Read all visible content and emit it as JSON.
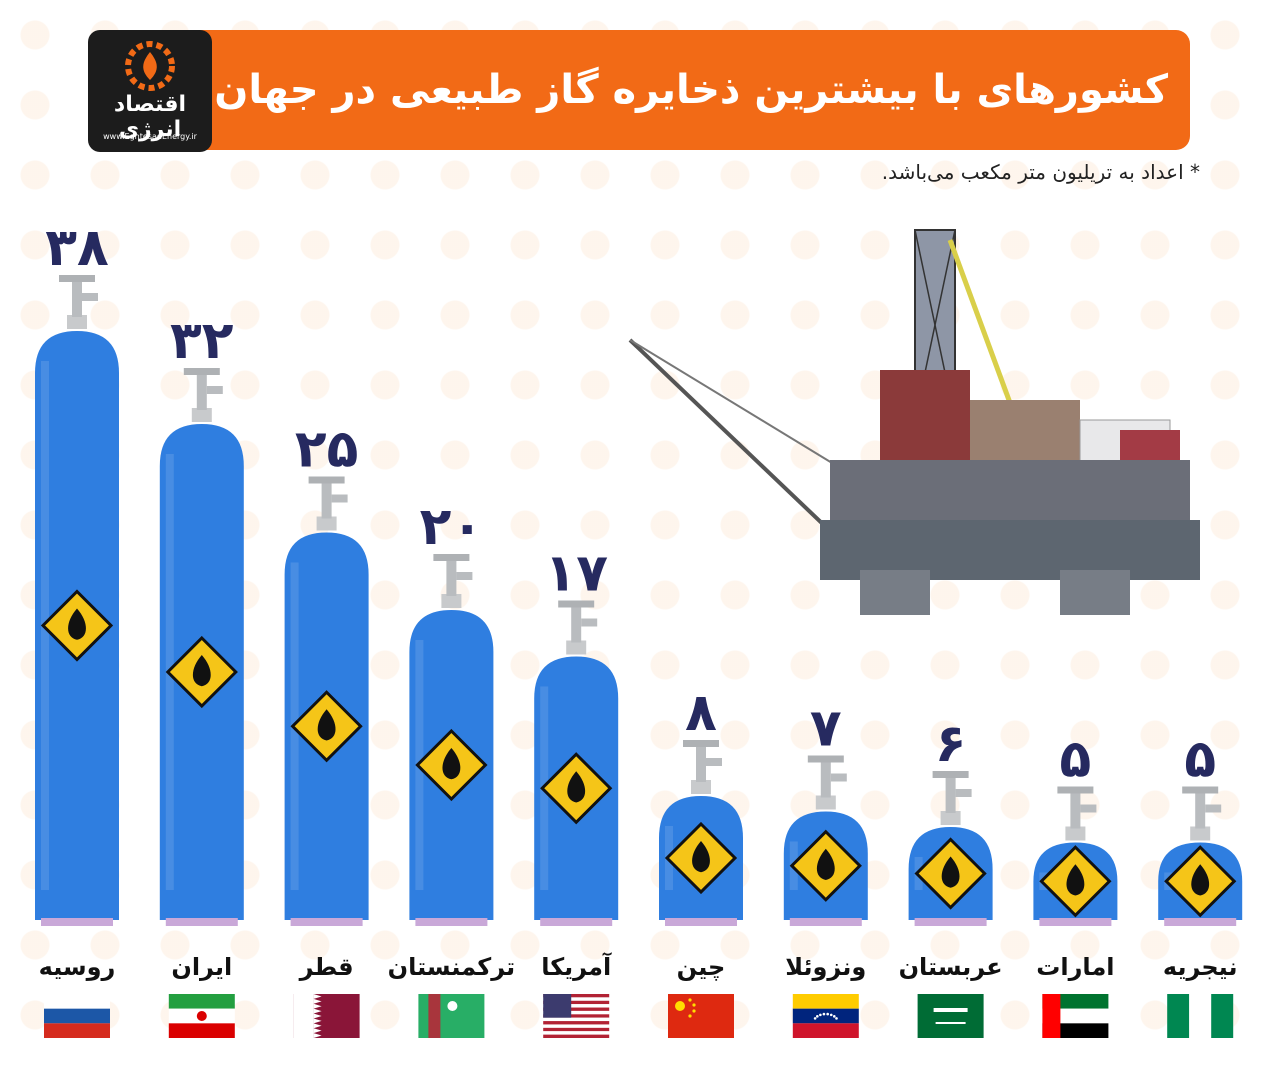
{
  "header": {
    "title": "کشورهای با بیشترین ذخایره گاز طبیعی در جهان"
  },
  "logo": {
    "name": "اقتصاد انرژی",
    "url": "www.EghtesadEnergy.ir"
  },
  "note": "* اعداد به تریلیون متر مکعب می‌باشد.",
  "colors": {
    "header": "#f26a16",
    "cylinder": "#2f7ee0",
    "value_text": "#262a60",
    "hazard": "#f5c518"
  },
  "chart_data": {
    "type": "bar",
    "categories": [
      "روسیه",
      "ایران",
      "قطر",
      "ترکمنستان",
      "آمریکا",
      "چین",
      "ونزوئلا",
      "عربستان",
      "امارات",
      "نیجریه"
    ],
    "values": [
      38,
      32,
      25,
      20,
      17,
      8,
      7,
      6,
      5,
      5
    ],
    "value_labels": [
      "۳۸",
      "۳۲",
      "۲۵",
      "۲۰",
      "۱۷",
      "۸",
      "۷",
      "۶",
      "۵",
      "۵"
    ],
    "flags": [
      "russia-flag",
      "iran-flag",
      "qatar-flag",
      "turkmenistan-flag",
      "usa-flag",
      "china-flag",
      "venezuela-flag",
      "saudi-arabia-flag",
      "uae-flag",
      "nigeria-flag"
    ],
    "ylim": [
      0,
      40
    ]
  }
}
